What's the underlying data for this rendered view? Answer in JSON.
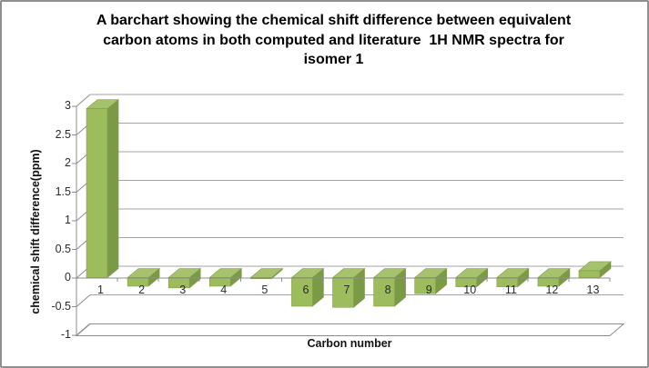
{
  "window": {
    "background": "#ffffff",
    "border_color": "#8f8f8f"
  },
  "chart_data": {
    "type": "bar",
    "style": "3d-bar",
    "title": "A barchart showing the chemical shift difference between equivalent carbon atoms in both computed and literature  1H NMR spectra for isomer 1",
    "title_lines": [
      "A barchart showing the chemical shift difference between equivalent",
      "carbon atoms in both computed and literature  1H NMR spectra for",
      "isomer 1"
    ],
    "xlabel": "Carbon number",
    "ylabel": "chemical shift difference(ppm)",
    "categories": [
      "1",
      "2",
      "3",
      "4",
      "5",
      "6",
      "7",
      "8",
      "9",
      "10",
      "11",
      "12",
      "13"
    ],
    "values": [
      2.95,
      -0.15,
      -0.18,
      -0.15,
      -0.02,
      -0.5,
      -0.52,
      -0.5,
      -0.28,
      -0.16,
      -0.16,
      -0.15,
      0.12
    ],
    "ylim": [
      -1,
      3
    ],
    "ytick_step": 0.5,
    "yticks": [
      3,
      2.5,
      2,
      1.5,
      1,
      0.5,
      0,
      -0.5,
      -1
    ],
    "ytick_labels": [
      "3",
      "2.5",
      "2",
      "1.5",
      "1",
      "0.5",
      "0",
      "-0.5",
      "-1"
    ],
    "grid": true,
    "legend": false,
    "colors": {
      "bar_front": "#9dbc5c",
      "bar_top": "#a6c26c",
      "bar_side": "#7b9a46",
      "bar_edge": "#7f9c4a",
      "gridline": "#a3a3a3",
      "axis": "#8c8c8c",
      "tick_text": "#2b2b2b",
      "title_text": "#000000"
    }
  }
}
